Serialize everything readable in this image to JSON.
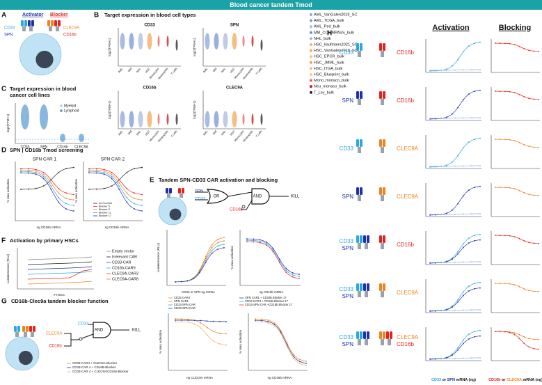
{
  "header": {
    "title": "Blood cancer tandem Tmod"
  },
  "target_colors": {
    "CD33": "#2aa7e0",
    "SPN": "#1f2fa8",
    "CD16b": "#e3231b",
    "CLEC9A": "#f0821e"
  },
  "panel_A": {
    "letter": "A",
    "activator": "Activator",
    "blocker": "Blocker",
    "activator_targets": [
      "CD33",
      "SPN"
    ],
    "blocker_targets": [
      "CLEC9A",
      "CD16b"
    ]
  },
  "panel_B": {
    "letter": "B",
    "title": "Target expression in blood cell types",
    "y_label": "log2(TPM+1)",
    "subplots": [
      "CD33",
      "SPN",
      "CD16b",
      "CLEC9A"
    ],
    "categories": [
      "AML",
      "MM",
      "NHL",
      "HSC",
      "Monocytes",
      "Neutrophils",
      "T cells"
    ],
    "legend": [
      {
        "name": "AML_VanGalen2019_SC",
        "color": "#8ea6da"
      },
      {
        "name": "AML_TCGA_bulk",
        "color": "#7897d4"
      },
      {
        "name": "AML_Ped_bulk",
        "color": "#a9badf"
      },
      {
        "name": "MM_COMMPASS_bulk",
        "color": "#6d8bc8"
      },
      {
        "name": "NHL_bulk",
        "color": "#8fb3e2"
      },
      {
        "name": "HSC_kaufmann2021_SC",
        "color": "#f6b36c"
      },
      {
        "name": "HSC_VanGalen2019_SC",
        "color": "#f3a85a"
      },
      {
        "name": "HSC_EPCR_bulk",
        "color": "#f7c285"
      },
      {
        "name": "HSC_JMML_bulk",
        "color": "#f0a04a"
      },
      {
        "name": "HSC_ITGA_bulk",
        "color": "#f5b878"
      },
      {
        "name": "HSC_Blueprint_bulk",
        "color": "#f7c890"
      },
      {
        "name": "Mono_monaco_bulk",
        "color": "#e06060"
      },
      {
        "name": "Neu_monaco_bulk",
        "color": "#c81414"
      },
      {
        "name": "T_Ley_bulk",
        "color": "#222222"
      }
    ]
  },
  "panel_C": {
    "letter": "C",
    "title": [
      "Target expression in blood",
      "cancer cell lines"
    ],
    "y_label": "log2(TPM+1)",
    "categories": [
      "CD33",
      "SPN",
      "CD16b",
      "CLEC9A"
    ],
    "legend": [
      {
        "name": "Myeloid",
        "color": "#a6d0ec"
      },
      {
        "name": "Lymphoid",
        "color": "#4a8fcb"
      }
    ]
  },
  "panel_D": {
    "letter": "D",
    "title": "SPN | CD16b Tmod screening",
    "subplots": [
      "SPN CAR 1",
      "SPN CAR 2"
    ],
    "y_label": "% max activation",
    "x_label": "ng CD16b mRNA",
    "legend": [
      {
        "name": "Irrel control",
        "color": "#222222"
      },
      {
        "name": "Blocker 5",
        "color": "#e3231b"
      },
      {
        "name": "Blocker 9",
        "color": "#f0821e"
      },
      {
        "name": "Blocker 11",
        "color": "#2aa7e0"
      },
      {
        "name": "Blocker 17",
        "color": "#1f2fa8"
      }
    ]
  },
  "panel_E": {
    "letter": "E",
    "title": "Tandem SPN-CD33 CAR activation and blocking",
    "schematic": {
      "activators": [
        "SPN",
        "CD33"
      ],
      "or": "OR",
      "blocker": "CD16b",
      "and": "AND",
      "kill": "KILL"
    },
    "left": {
      "y_label": "Luminescence (RLU)",
      "x_label": "CD33 or SPN ng mRNA",
      "legend": [
        {
          "name": "CD33 CAR4",
          "color": "#f0821e"
        },
        {
          "name": "SPN  CAR1",
          "color": "#f0821e"
        },
        {
          "name": "CD33-SPN CAR",
          "color": "#2aa7e0"
        },
        {
          "name": "CD33-SPN  CAR",
          "color": "#1f2fa8"
        }
      ]
    },
    "right": {
      "y_label": "% max activation",
      "x_label": "ng CD16b mRNA",
      "legend": [
        {
          "name": "SPN  CAR1 + CD16b Blocker 17",
          "color": "#1f2fa8"
        },
        {
          "name": "CD33  CAR3 + CD16b Blocker 17",
          "color": "#2aa7e0"
        },
        {
          "name": "CD33-SPN  CAR +CD16b  Blocker 17",
          "color": "#e3231b"
        }
      ]
    }
  },
  "panel_F": {
    "letter": "F",
    "title": "Activation by primary HSCs",
    "y_label": "Luminescence (RLU)",
    "x_label": "# HSCs",
    "legend": [
      {
        "name": "Empty vector",
        "color": "#888888"
      },
      {
        "name": "Irrelevant CAR",
        "color": "#222222"
      },
      {
        "name": "CD33-CAR",
        "color": "#1f2fa8"
      },
      {
        "name": "CD16b-CAR9",
        "color": "#2aa7e0"
      },
      {
        "name": "CLEC9A-CAR3",
        "color": "#e3231b"
      },
      {
        "name": "CLEC9A-CAR8",
        "color": "#f0821e"
      }
    ]
  },
  "panel_G": {
    "letter": "G",
    "title": "CD16b-Clec9a tandem blocker function",
    "schematic": {
      "activator": "CD33",
      "blockers": [
        "CLEC9A",
        "CD16b"
      ],
      "and": "AND",
      "kill": "KILL"
    },
    "legend": [
      {
        "name": "CD33-CAR4 + CLEC9A-Blocker",
        "color": "#f0821e"
      },
      {
        "name": "CD33-CAR 4 + CD16B-Blocker",
        "color": "#1f2fa8"
      },
      {
        "name": "CD33-CAR 4 + CLEC9A/CD16b-Blocker",
        "color": "#f5b36c"
      }
    ],
    "y_label": "% max activation",
    "x_labels": [
      "ng CLEC9A mRNA",
      "ng CD16b mRNA"
    ]
  },
  "panel_H": {
    "letter": "H",
    "activation": "Activation",
    "blocking": "Blocking",
    "rows": [
      {
        "activators": [
          "CD33"
        ],
        "blockers": [
          "CD16b"
        ]
      },
      {
        "activators": [
          "SPN"
        ],
        "blockers": [
          "CD16b"
        ]
      },
      {
        "activators": [
          "CD33"
        ],
        "blockers": [
          "CLEC9A"
        ]
      },
      {
        "activators": [
          "SPN"
        ],
        "blockers": [
          "CLEC9A"
        ]
      },
      {
        "activators": [
          "CD33",
          "SPN"
        ],
        "blockers": [
          "CD16b"
        ]
      },
      {
        "activators": [
          "CD33",
          "SPN"
        ],
        "blockers": [
          "CLEC9A"
        ]
      },
      {
        "activators": [
          "CD33",
          "SPN"
        ],
        "blockers": [
          "CLEC9A",
          "CD16b"
        ]
      }
    ],
    "x_label_activation": [
      "CD33",
      "or",
      "SPN",
      "mRNA (ng)"
    ],
    "x_label_blocking": [
      "CD16b",
      "or",
      "CLEC9A",
      "mRNA (ng)"
    ]
  }
}
